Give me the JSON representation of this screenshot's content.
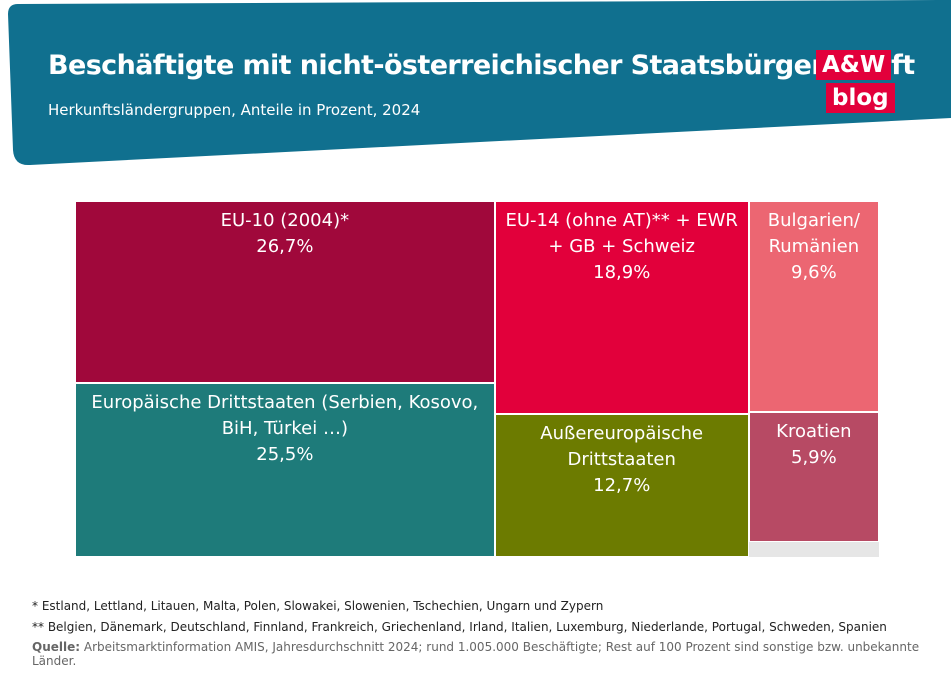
{
  "chart_data": {
    "type": "treemap",
    "title": "Beschäftigte mit nicht-österreichischer Staatsbürgerschaft",
    "subtitle": "Herkunftsländergruppen, Anteile in Prozent, 2024",
    "labels": [
      "EU-10 (2004)*",
      "Europäische Drittstaaten (Serbien, Kosovo, BiH, Türkei …)",
      "EU-14 (ohne AT)** + EWR + GB + Schweiz",
      "Außereuropäische Drittstaaten",
      "Bulgarien/ Rumänien",
      "Kroatien"
    ],
    "values": [
      26.7,
      25.5,
      18.9,
      12.7,
      9.6,
      5.9
    ],
    "value_labels": [
      "26,7%",
      "25,5%",
      "18,9%",
      "12,7%",
      "9,6%",
      "5,9%"
    ],
    "colors": [
      "#a0083b",
      "#1e7b7a",
      "#e2003b",
      "#6c7b00",
      "#ec6672",
      "#b74a64"
    ],
    "total": 100,
    "footnotes": [
      "* Estland, Lettland, Litauen, Malta, Polen, Slowakei, Slowenien, Tschechien, Ungarn und Zypern",
      "** Belgien, Dänemark, Deutschland, Finnland, Frankreich, Griechenland, Irland, Italien, Luxemburg, Niederlande, Portugal, Schweden, Spanien"
    ],
    "source_label": "Quelle:",
    "source": "Arbeitsmarktinformation AMIS, Jahresdurchschnitt 2024; rund 1.005.000 Beschäftigte; Rest auf 100 Prozent sind sonstige bzw. unbekannte Länder."
  },
  "logo": {
    "line1": "A&W",
    "line2": "blog"
  }
}
